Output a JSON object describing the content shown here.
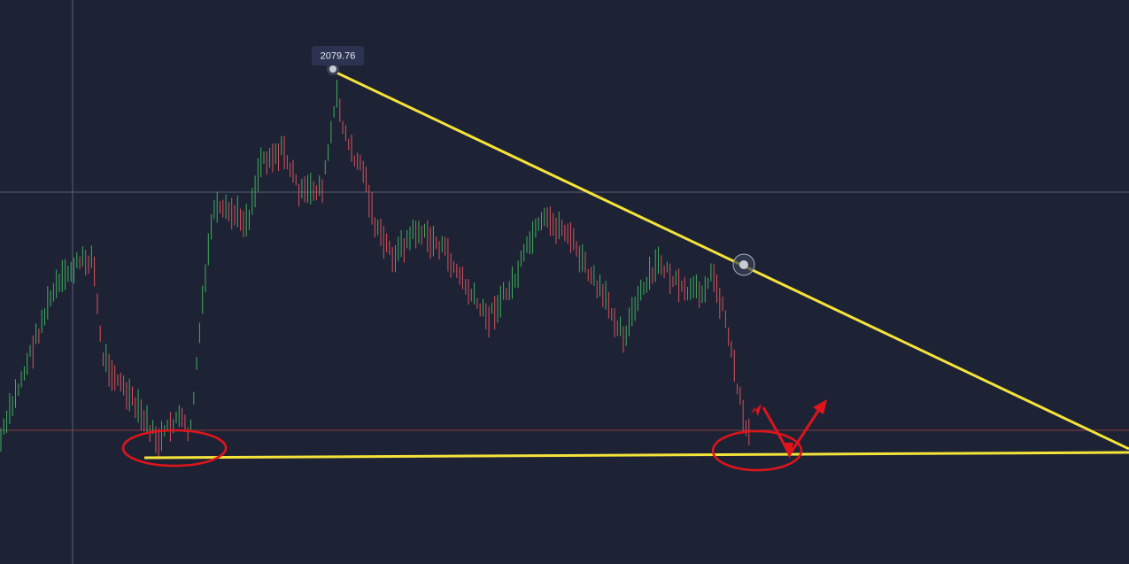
{
  "price_label": "2079.76"
}
